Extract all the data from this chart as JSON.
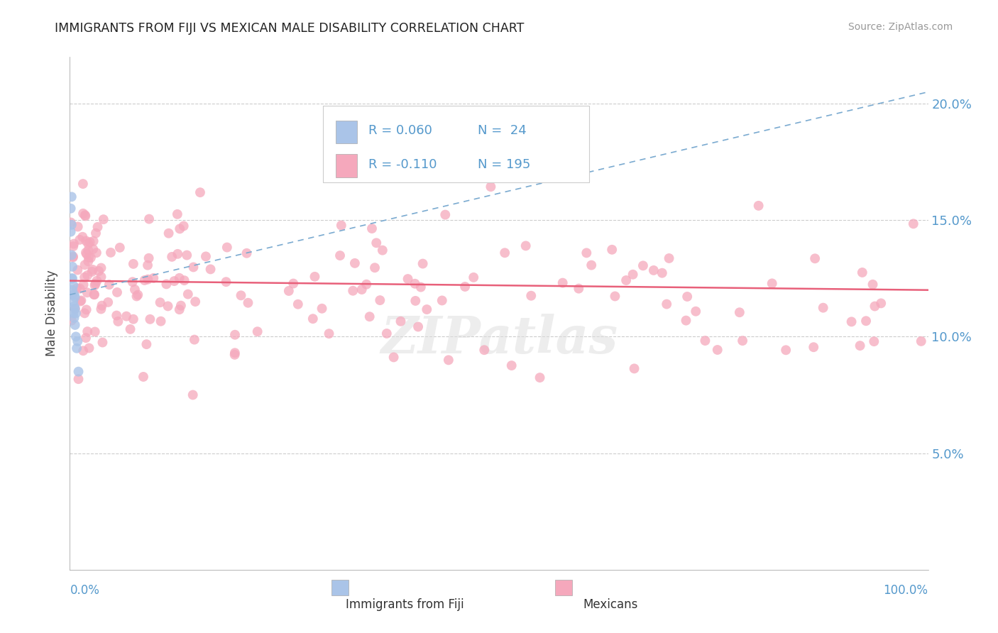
{
  "title": "IMMIGRANTS FROM FIJI VS MEXICAN MALE DISABILITY CORRELATION CHART",
  "source": "Source: ZipAtlas.com",
  "ylabel": "Male Disability",
  "ylim": [
    0.0,
    0.22
  ],
  "xlim": [
    0.0,
    1.0
  ],
  "yticks": [
    0.05,
    0.1,
    0.15,
    0.2
  ],
  "ytick_labels": [
    "5.0%",
    "10.0%",
    "15.0%",
    "20.0%"
  ],
  "legend_r1": "R = 0.060",
  "legend_n1": "N =  24",
  "legend_r2": "R = -0.110",
  "legend_n2": "N = 195",
  "color_fiji": "#aac4e8",
  "color_mexican": "#f5a8bc",
  "trend_fiji_color": "#7aaad0",
  "trend_mexican_color": "#e8607a",
  "background_color": "#ffffff",
  "watermark": "ZIPatlas",
  "fiji_trend_x": [
    0.0,
    1.0
  ],
  "fiji_trend_y": [
    0.118,
    0.205
  ],
  "mexican_trend_x": [
    0.0,
    1.0
  ],
  "mexican_trend_y": [
    0.124,
    0.12
  ]
}
